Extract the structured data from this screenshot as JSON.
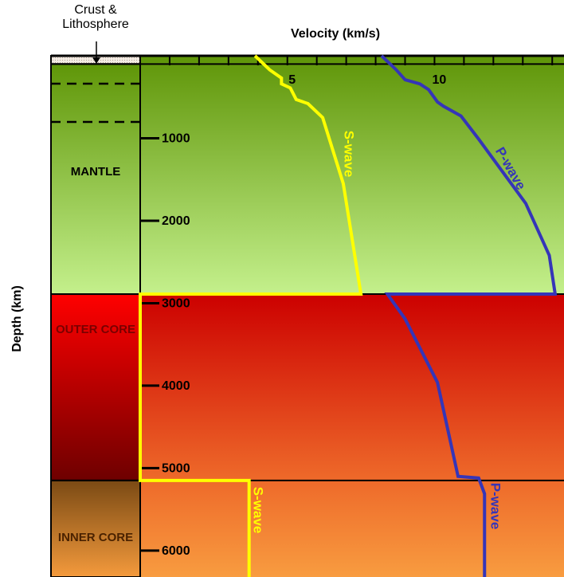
{
  "chart_data": {
    "type": "line",
    "x_label": "Velocity (km/s)",
    "y_label": "Depth (km)",
    "xlim": [
      0,
      14.4
    ],
    "ylim": [
      0,
      6320
    ],
    "y_inverted": true,
    "xticks": [
      5,
      10
    ],
    "xminor": [
      1,
      2,
      3,
      4,
      5,
      6,
      7,
      8,
      9,
      10,
      11,
      12,
      13,
      14
    ],
    "yticks": [
      1000,
      2000,
      3000,
      4000,
      5000,
      6000
    ],
    "layers": [
      {
        "name": "Crust & Lithosphere",
        "top": 0,
        "bottom": 100,
        "fill": [
          "#f4ece4",
          "#e8dcd0"
        ],
        "plot_fill": [
          "#5f9608",
          "#62980c"
        ]
      },
      {
        "name": "MANTLE",
        "top": 100,
        "bottom": 2890,
        "fill": [
          "#5f9608",
          "#c4f08c"
        ],
        "plot_fill": [
          "#62980c",
          "#c4f08c"
        ]
      },
      {
        "name": "OUTER CORE",
        "top": 2890,
        "bottom": 5150,
        "fill": [
          "#ff0000",
          "#6e0000"
        ],
        "plot_fill": [
          "#cc0000",
          "#ee6a2a"
        ]
      },
      {
        "name": "INNER CORE",
        "top": 5150,
        "bottom": 6320,
        "fill": [
          "#7a4a14",
          "#f49a3c"
        ],
        "plot_fill": [
          "#ee6a2a",
          "#f89c40"
        ]
      }
    ],
    "series": [
      {
        "name": "S-wave",
        "color": "#ffff00",
        "x": [
          3.9,
          4.4,
          4.8,
          4.8,
          5.1,
          5.3,
          5.7,
          6.2,
          6.9,
          7.5,
          0,
          0,
          3.7,
          3.7
        ],
        "values": [
          0,
          170,
          270,
          340,
          390,
          530,
          580,
          750,
          1550,
          2890,
          2890,
          5150,
          5150,
          6320
        ]
      },
      {
        "name": "P-wave",
        "color": "#3535b8",
        "x": [
          8.2,
          8.7,
          9.0,
          9.5,
          9.8,
          10.1,
          10.3,
          10.9,
          11.5,
          13.1,
          13.9,
          14.1,
          8.4,
          9.0,
          10.1,
          10.8,
          11.5,
          11.7,
          11.7
        ],
        "values": [
          0,
          170,
          290,
          340,
          410,
          560,
          610,
          730,
          1010,
          1790,
          2420,
          2890,
          2890,
          3190,
          3960,
          5100,
          5120,
          5310,
          6320
        ]
      }
    ]
  }
}
